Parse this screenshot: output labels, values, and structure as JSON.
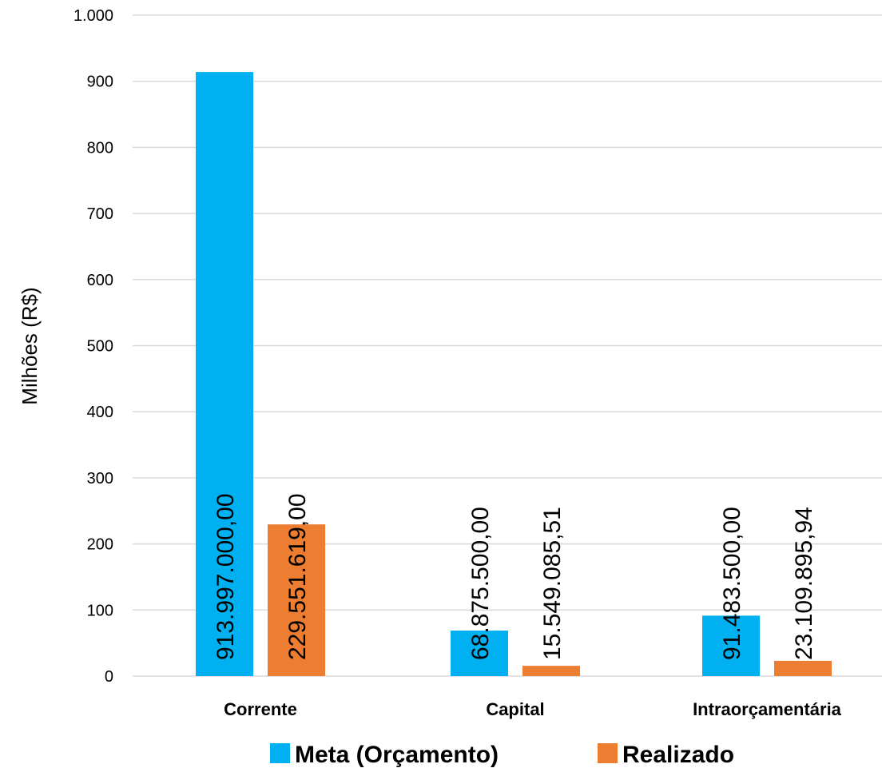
{
  "chart_data": {
    "type": "bar",
    "title": "",
    "xlabel": "",
    "ylabel": "Milhões (R$)",
    "ylim": [
      0,
      1000
    ],
    "yticks": [
      0,
      100,
      200,
      300,
      400,
      500,
      600,
      700,
      800,
      900,
      1000
    ],
    "ytick_labels": [
      "0",
      "100",
      "200",
      "300",
      "400",
      "500",
      "600",
      "700",
      "800",
      "900",
      "1.000"
    ],
    "grid": true,
    "legend_position": "bottom",
    "categories": [
      "Corrente",
      "Capital",
      "Intraorçamentária"
    ],
    "series": [
      {
        "name": "Meta (Orçamento)",
        "color": "#00B0F0",
        "values": [
          913.997,
          68.8755,
          91.4835
        ],
        "labels": [
          "913.997.000,00",
          "68.875.500,00",
          "91.483.500,00"
        ]
      },
      {
        "name": "Realizado",
        "color": "#ED7D31",
        "values": [
          229.551619,
          15.54908551,
          23.10989594
        ],
        "labels": [
          "229.551.619,00",
          "15.549.085,51",
          "23.109.895,94"
        ]
      }
    ]
  }
}
